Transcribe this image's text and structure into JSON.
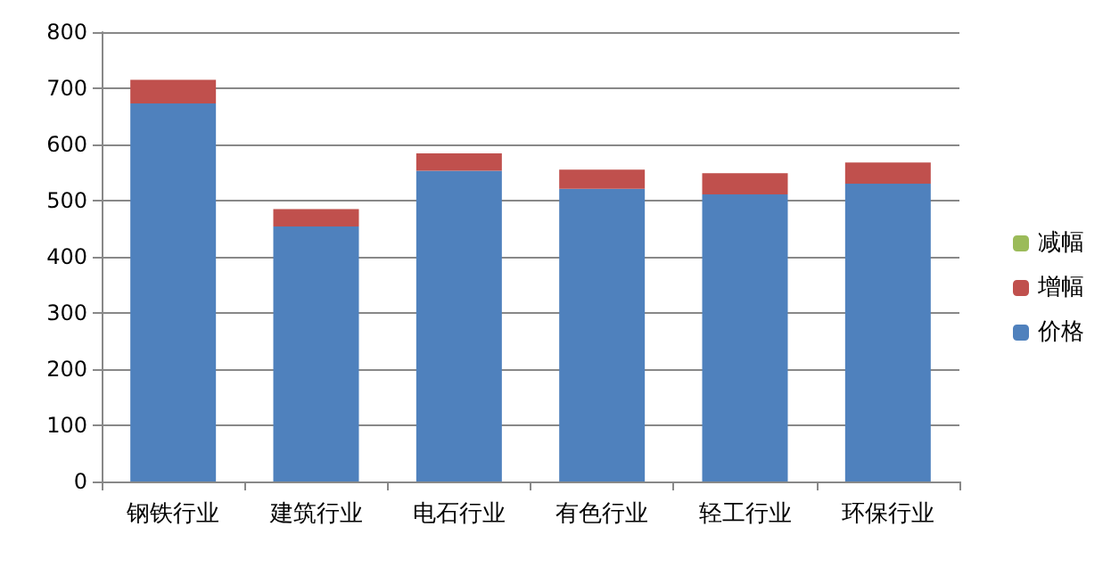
{
  "chart_data": {
    "type": "bar",
    "stacked": true,
    "categories": [
      "钢铁行业",
      "建筑行业",
      "电石行业",
      "有色行业",
      "轻工行业",
      "环保行业"
    ],
    "series": [
      {
        "name": "价格",
        "color": "#4f81bd",
        "values": [
          673,
          454,
          553,
          521,
          511,
          530
        ]
      },
      {
        "name": "增幅",
        "color": "#c0504d",
        "values": [
          42,
          31,
          31,
          34,
          38,
          38
        ]
      },
      {
        "name": "减幅",
        "color": "#9bbb59",
        "values": [
          0,
          0,
          0,
          0,
          0,
          0
        ]
      }
    ],
    "ylim": [
      0,
      800
    ],
    "yticks": [
      0,
      100,
      200,
      300,
      400,
      500,
      600,
      700,
      800
    ],
    "grid": "y",
    "legend": "right"
  }
}
